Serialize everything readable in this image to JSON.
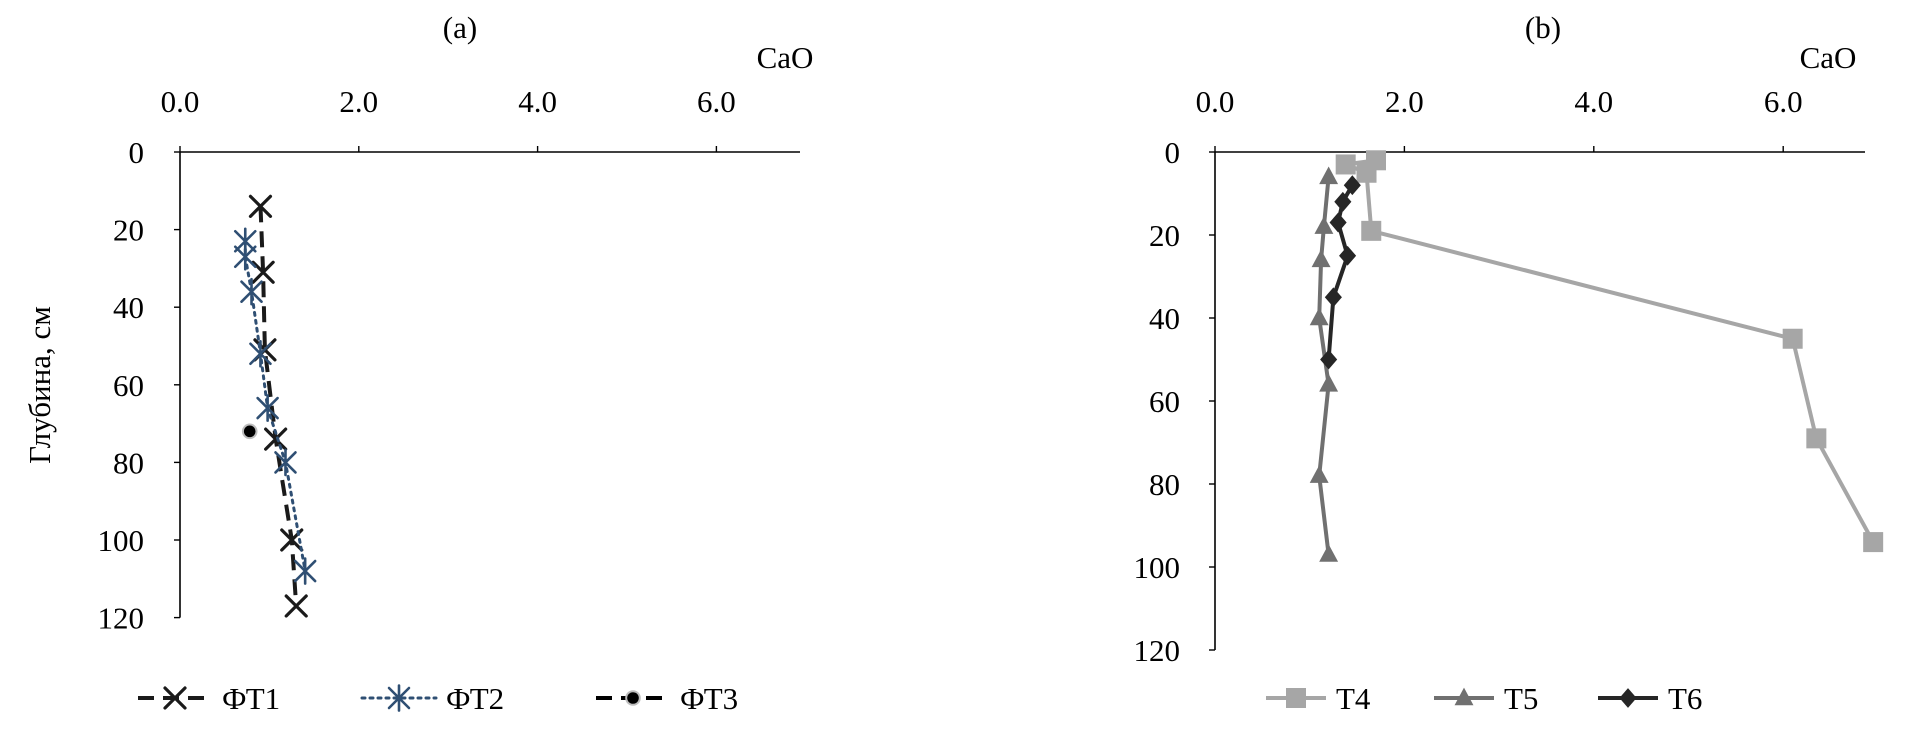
{
  "chart_data": [
    {
      "type": "line",
      "panel_label": "(a)",
      "xlabel": "CaO",
      "ylabel": "Глубина, см",
      "x_axis_position": "top",
      "y_axis_inverted": true,
      "xlim": [
        0,
        7
      ],
      "ylim": [
        0,
        120
      ],
      "xticks": [
        "0.0",
        "2.0",
        "4.0",
        "6.0"
      ],
      "xtick_values": [
        0,
        2,
        4,
        6
      ],
      "yticks": [
        "0",
        "20",
        "40",
        "60",
        "80",
        "100",
        "120"
      ],
      "ytick_values": [
        0,
        20,
        40,
        60,
        80,
        100,
        120
      ],
      "grid": false,
      "legend_position": "bottom",
      "series": [
        {
          "name": "ФТ1",
          "color": "#1a1a1a",
          "line_style": "dashed",
          "marker": "x",
          "points": [
            [
              0.9,
              14
            ],
            [
              0.93,
              31
            ],
            [
              0.95,
              51
            ],
            [
              1.07,
              74
            ],
            [
              1.25,
              100
            ],
            [
              1.3,
              117
            ]
          ]
        },
        {
          "name": "ФТ2",
          "color": "#2f4f73",
          "line_style": "dotted",
          "marker": "asterisk",
          "points": [
            [
              0.73,
              23
            ],
            [
              0.73,
              27
            ],
            [
              0.8,
              36
            ],
            [
              0.9,
              52
            ],
            [
              0.98,
              66
            ],
            [
              1.18,
              80
            ],
            [
              1.4,
              108
            ]
          ]
        },
        {
          "name": "ФТ3",
          "color": "#000000",
          "line_style": "dashed",
          "marker": "circle",
          "points": [
            [
              0.78,
              72
            ]
          ]
        }
      ]
    },
    {
      "type": "line",
      "panel_label": "(b)",
      "xlabel": "CaO",
      "ylabel": "",
      "x_axis_position": "top",
      "y_axis_inverted": true,
      "xlim": [
        0,
        7
      ],
      "ylim": [
        0,
        120
      ],
      "xticks": [
        "0.0",
        "2.0",
        "4.0",
        "6.0"
      ],
      "xtick_values": [
        0,
        2,
        4,
        6
      ],
      "yticks": [
        "0",
        "20",
        "40",
        "60",
        "80",
        "100",
        "120"
      ],
      "ytick_values": [
        0,
        20,
        40,
        60,
        80,
        100,
        120
      ],
      "grid": false,
      "legend_position": "bottom",
      "series": [
        {
          "name": "T4",
          "color": "#a6a6a6",
          "line_style": "solid",
          "marker": "square",
          "points": [
            [
              1.7,
              2
            ],
            [
              1.38,
              3
            ],
            [
              1.6,
              5
            ],
            [
              1.65,
              19
            ],
            [
              6.1,
              45
            ],
            [
              6.35,
              69
            ],
            [
              6.95,
              94
            ]
          ]
        },
        {
          "name": "T5",
          "color": "#707070",
          "line_style": "solid",
          "marker": "triangle",
          "points": [
            [
              1.2,
              6
            ],
            [
              1.15,
              18
            ],
            [
              1.12,
              26
            ],
            [
              1.1,
              40
            ],
            [
              1.2,
              56
            ],
            [
              1.1,
              78
            ],
            [
              1.2,
              97
            ]
          ]
        },
        {
          "name": "T6",
          "color": "#262626",
          "line_style": "solid",
          "marker": "diamond",
          "points": [
            [
              1.45,
              8
            ],
            [
              1.35,
              12
            ],
            [
              1.3,
              17
            ],
            [
              1.4,
              25
            ],
            [
              1.25,
              35
            ],
            [
              1.2,
              50
            ]
          ]
        }
      ]
    }
  ]
}
